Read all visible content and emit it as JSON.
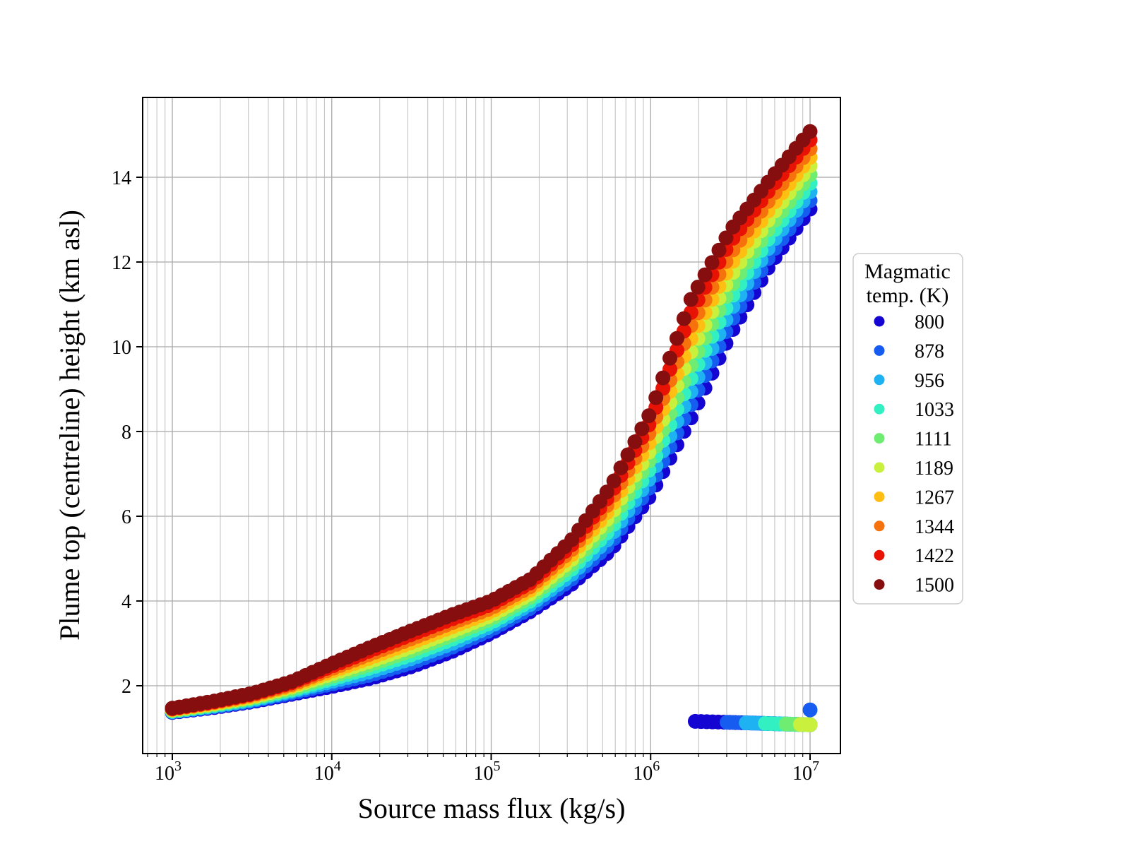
{
  "chart_data": {
    "type": "scatter",
    "title": "",
    "xlabel": "Source mass flux (kg/s)",
    "ylabel": "Plume top (centreline) height (km asl)",
    "x_scale": "log",
    "xlim_log10": [
      2.814,
      7.19
    ],
    "ylim": [
      0.4,
      15.88
    ],
    "xticks": [
      {
        "base": "10",
        "exp": "3",
        "log10": 3
      },
      {
        "base": "10",
        "exp": "4",
        "log10": 4
      },
      {
        "base": "10",
        "exp": "5",
        "log10": 5
      },
      {
        "base": "10",
        "exp": "6",
        "log10": 6
      },
      {
        "base": "10",
        "exp": "7",
        "log10": 7
      }
    ],
    "x_minor_decades": [
      2,
      3,
      4,
      5,
      6
    ],
    "x_minor_mantissas": [
      2,
      3,
      4,
      5,
      6,
      7,
      8,
      9
    ],
    "yticks": [
      2,
      4,
      6,
      8,
      10,
      12,
      14
    ],
    "grid": {
      "major_color": "#a8a8a8",
      "minor_color": "#c4c4c4"
    },
    "marker_diameter_px": 21,
    "legend": {
      "title_lines": [
        "Magmatic",
        "temp. (K)"
      ],
      "entries": [
        {
          "label": "800",
          "color": "#1405D2"
        },
        {
          "label": "878",
          "color": "#175CF0"
        },
        {
          "label": "956",
          "color": "#1FB2F2"
        },
        {
          "label": "1033",
          "color": "#33F0C2"
        },
        {
          "label": "1111",
          "color": "#6FED72"
        },
        {
          "label": "1189",
          "color": "#C8F03C"
        },
        {
          "label": "1267",
          "color": "#FFBE12"
        },
        {
          "label": "1344",
          "color": "#F5720D"
        },
        {
          "label": "1422",
          "color": "#E81205"
        },
        {
          "label": "1500",
          "color": "#870E0E"
        }
      ]
    },
    "knots_log10_flux": [
      3.0,
      3.25,
      3.5,
      3.75,
      4.0,
      4.25,
      4.5,
      4.75,
      5.0,
      5.25,
      5.5,
      5.75,
      6.0,
      6.25,
      6.5,
      6.75,
      7.0
    ],
    "series": [
      {
        "temp": 800,
        "color": "#1405D2",
        "heights_km": [
          1.37,
          1.48,
          1.62,
          1.8,
          1.98,
          2.18,
          2.45,
          2.8,
          3.24,
          3.76,
          4.38,
          5.2,
          6.5,
          8.3,
          10.3,
          11.95,
          13.25
        ]
      },
      {
        "temp": 878,
        "color": "#175CF0",
        "heights_km": [
          1.38,
          1.5,
          1.64,
          1.83,
          2.04,
          2.26,
          2.54,
          2.9,
          3.32,
          3.84,
          4.5,
          5.37,
          6.72,
          8.61,
          10.57,
          12.17,
          13.45
        ]
      },
      {
        "temp": 956,
        "color": "#1FB2F2",
        "heights_km": [
          1.39,
          1.51,
          1.66,
          1.87,
          2.1,
          2.34,
          2.64,
          2.99,
          3.41,
          3.93,
          4.61,
          5.53,
          6.93,
          8.92,
          10.85,
          12.4,
          13.66
        ]
      },
      {
        "temp": 1033,
        "color": "#33F0C2",
        "heights_km": [
          1.4,
          1.53,
          1.69,
          1.9,
          2.16,
          2.43,
          2.73,
          3.09,
          3.49,
          4.01,
          4.73,
          5.7,
          7.15,
          9.23,
          11.12,
          12.62,
          13.86
        ]
      },
      {
        "temp": 1111,
        "color": "#6FED72",
        "heights_km": [
          1.41,
          1.55,
          1.71,
          1.93,
          2.22,
          2.51,
          2.83,
          3.19,
          3.58,
          4.1,
          4.84,
          5.87,
          7.37,
          9.54,
          11.39,
          12.84,
          14.06
        ]
      },
      {
        "temp": 1189,
        "color": "#C8F03C",
        "heights_km": [
          1.43,
          1.56,
          1.73,
          1.97,
          2.28,
          2.59,
          2.92,
          3.28,
          3.66,
          4.18,
          4.96,
          6.03,
          7.58,
          9.86,
          11.66,
          13.06,
          14.27
        ]
      },
      {
        "temp": 1267,
        "color": "#FFBE12",
        "heights_km": [
          1.44,
          1.58,
          1.75,
          2.0,
          2.34,
          2.67,
          3.02,
          3.38,
          3.75,
          4.27,
          5.07,
          6.2,
          7.8,
          10.17,
          11.93,
          13.28,
          14.47
        ]
      },
      {
        "temp": 1344,
        "color": "#F5720D",
        "heights_km": [
          1.45,
          1.6,
          1.78,
          2.03,
          2.4,
          2.76,
          3.11,
          3.48,
          3.83,
          4.35,
          5.19,
          6.37,
          8.02,
          10.48,
          12.2,
          13.5,
          14.67
        ]
      },
      {
        "temp": 1422,
        "color": "#E81205",
        "heights_km": [
          1.46,
          1.61,
          1.8,
          2.07,
          2.46,
          2.84,
          3.21,
          3.57,
          3.92,
          4.44,
          5.3,
          6.53,
          8.23,
          10.79,
          12.48,
          13.73,
          14.88
        ]
      },
      {
        "temp": 1500,
        "color": "#870E0E",
        "heights_km": [
          1.47,
          1.63,
          1.82,
          2.1,
          2.52,
          2.92,
          3.3,
          3.67,
          4.0,
          4.52,
          5.42,
          6.7,
          8.45,
          11.1,
          12.75,
          13.95,
          15.08
        ]
      }
    ],
    "collapsed_branch": {
      "note": "low flat cluster of collapsed plumes at lower right",
      "y_start_km": 1.16,
      "y_end_km": 1.08,
      "x_end_log10": 7.0,
      "series": [
        {
          "temp": 800,
          "x_start_log10": 6.28
        },
        {
          "temp": 878,
          "x_start_log10": 6.48
        },
        {
          "temp": 956,
          "x_start_log10": 6.6
        },
        {
          "temp": 1033,
          "x_start_log10": 6.72
        },
        {
          "temp": 1111,
          "x_start_log10": 6.85
        },
        {
          "temp": 1189,
          "x_start_log10": 6.94
        }
      ]
    },
    "outlier_point": {
      "temp": 878,
      "x_log10": 7.0,
      "y_km": 1.43
    }
  }
}
